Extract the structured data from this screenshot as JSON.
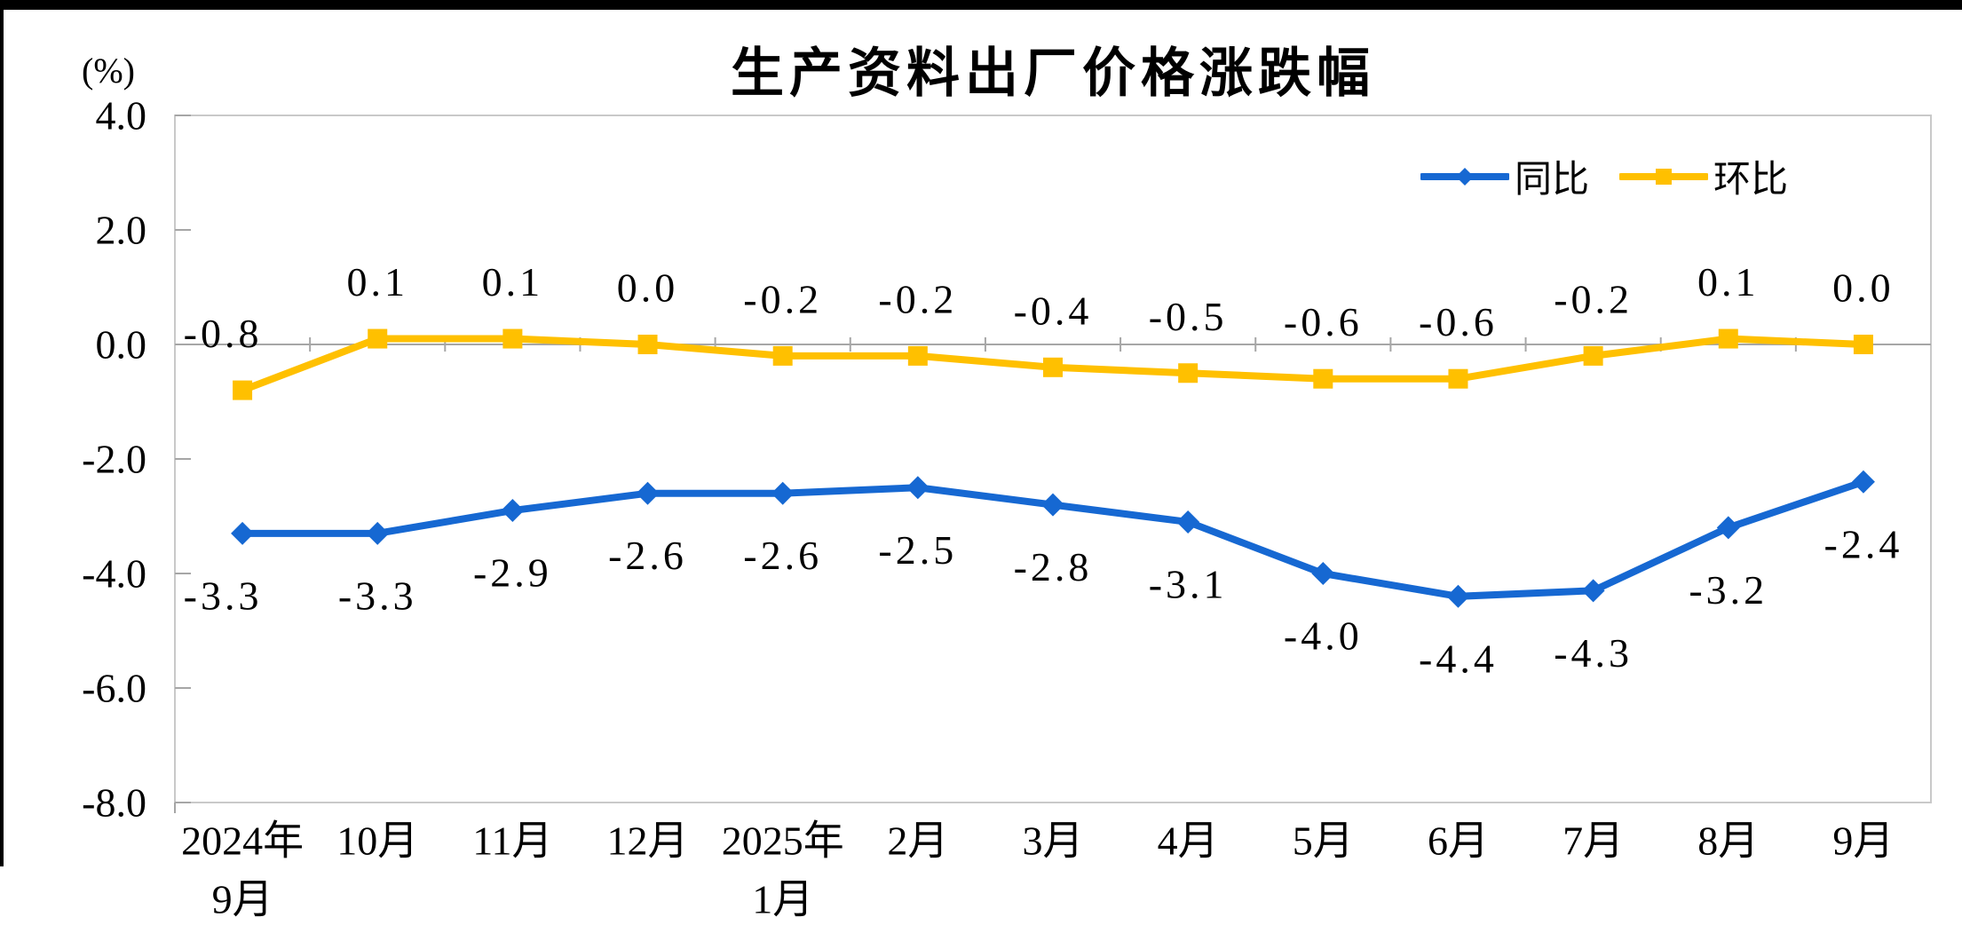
{
  "window": {
    "frame_color": "#000000",
    "background_color": "#FFFFFF"
  },
  "chart_data": {
    "type": "line",
    "title": "生产资料出厂价格涨跌幅",
    "unit_label": "(%)",
    "legend_position": "top-right-inside",
    "gridlines": false,
    "categories": [
      [
        "2024年",
        "9月"
      ],
      [
        "10月"
      ],
      [
        "11月"
      ],
      [
        "12月"
      ],
      [
        "2025年",
        "1月"
      ],
      [
        "2月"
      ],
      [
        "3月"
      ],
      [
        "4月"
      ],
      [
        "5月"
      ],
      [
        "6月"
      ],
      [
        "7月"
      ],
      [
        "8月"
      ],
      [
        "9月"
      ]
    ],
    "y_axis": {
      "min": -8,
      "max": 4,
      "tick_labels": [
        "4.0",
        "2.0",
        "0.0",
        "-2.0",
        "-4.0",
        "-6.0",
        "-8.0"
      ]
    },
    "series": [
      {
        "name": "同比",
        "color": "#1668D2",
        "marker": "diamond",
        "data_label_position": "below",
        "values": [
          -3.3,
          -3.3,
          -2.9,
          -2.6,
          -2.6,
          -2.5,
          -2.8,
          -3.1,
          -4.0,
          -4.4,
          -4.3,
          -3.2,
          -2.4
        ]
      },
      {
        "name": "环比",
        "color": "#FFC000",
        "marker": "square",
        "data_label_position": "above",
        "values": [
          -0.8,
          0.1,
          0.1,
          0.0,
          -0.2,
          -0.2,
          -0.4,
          -0.5,
          -0.6,
          -0.6,
          -0.2,
          0.1,
          0.0
        ]
      }
    ],
    "axis_colors": {
      "plot_border": "#C9C9C9",
      "zero_line": "#A6A6A6",
      "tick_marks": "#A6A6A6"
    }
  }
}
